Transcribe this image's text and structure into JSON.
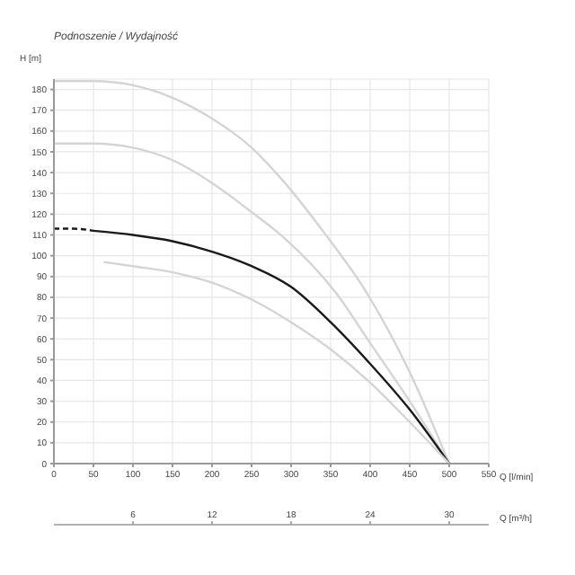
{
  "chart_data": {
    "type": "line",
    "title": "Podnoszenie / Wydajność",
    "ylabel": "H [m]",
    "xlabel": "Q [l/min]",
    "x2label": "Q [m³/h]",
    "xlim": [
      0,
      550
    ],
    "xticks": [
      0,
      50,
      100,
      150,
      200,
      250,
      300,
      350,
      400,
      450,
      500,
      550
    ],
    "x2lim": [
      0,
      33
    ],
    "x2ticks": [
      6,
      12,
      18,
      24,
      30
    ],
    "ylim": [
      0,
      185
    ],
    "yticks": [
      0,
      10,
      20,
      30,
      40,
      50,
      60,
      70,
      80,
      90,
      100,
      110,
      120,
      130,
      140,
      150,
      160,
      170,
      180
    ],
    "grid": true,
    "marker": "none",
    "series": [
      {
        "color": "#d4d4d4",
        "line_style": "solid",
        "x": [
          0,
          50,
          100,
          150,
          200,
          250,
          290,
          340,
          396,
          450,
          500
        ],
        "values": [
          184,
          184,
          182,
          176,
          166,
          152,
          136,
          112,
          82,
          44,
          0
        ]
      },
      {
        "color": "#d4d4d4",
        "line_style": "solid",
        "x": [
          0,
          50,
          100,
          150,
          200,
          250,
          290,
          357,
          400,
          450,
          500
        ],
        "values": [
          154,
          154,
          152,
          146,
          135,
          121,
          109,
          82,
          58,
          30,
          0
        ]
      },
      {
        "color": "#1a1a1a",
        "line_style": "dashed",
        "x": [
          0,
          25,
          50
        ],
        "values": [
          113,
          113,
          112
        ]
      },
      {
        "color": "#1a1a1a",
        "line_style": "solid",
        "x": [
          50,
          100,
          150,
          200,
          250,
          300,
          350,
          400,
          450,
          500
        ],
        "values": [
          112,
          110,
          107,
          102,
          95,
          85,
          68,
          48,
          26,
          0
        ]
      },
      {
        "color": "#d4d4d4",
        "line_style": "solid",
        "x": [
          63,
          100,
          150,
          200,
          250,
          300,
          350,
          400,
          450,
          500
        ],
        "values": [
          97,
          95,
          92,
          87,
          79,
          68,
          55,
          39,
          20,
          0
        ]
      }
    ]
  }
}
